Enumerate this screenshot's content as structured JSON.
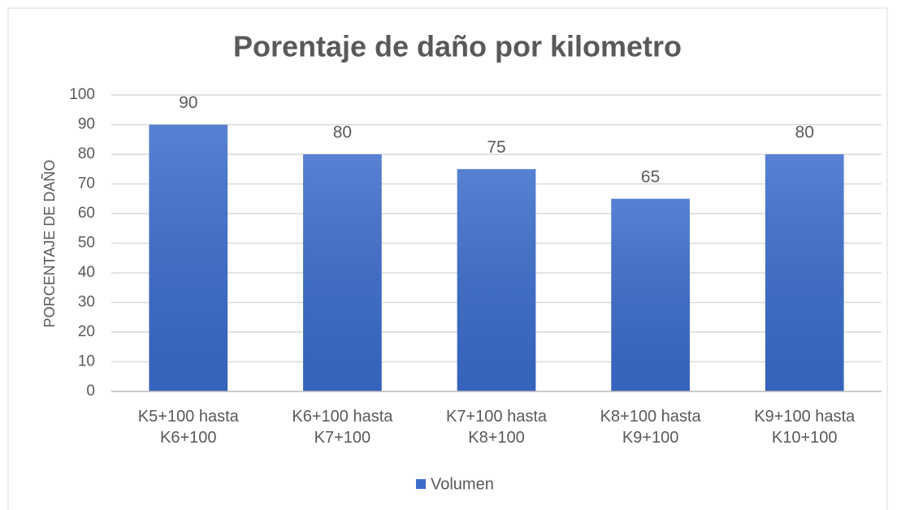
{
  "chart_data": {
    "type": "bar",
    "title": "Porentaje de daño por kilometro",
    "y_label": "PORCENTAJE DE DAÑO",
    "categories": [
      "K5+100 hasta K6+100",
      "K6+100 hasta K7+100",
      "K7+100 hasta K8+100",
      "K8+100 hasta K9+100",
      "K9+100 hasta K10+100"
    ],
    "series": [
      {
        "name": "Volumen",
        "color": "#3a6bcb",
        "values": [
          90,
          80,
          75,
          65,
          80
        ]
      }
    ],
    "ylim": [
      0,
      100
    ],
    "yticks": [
      0,
      10,
      20,
      30,
      40,
      50,
      60,
      70,
      80,
      90,
      100
    ],
    "grid": true,
    "legend": "bottom"
  }
}
